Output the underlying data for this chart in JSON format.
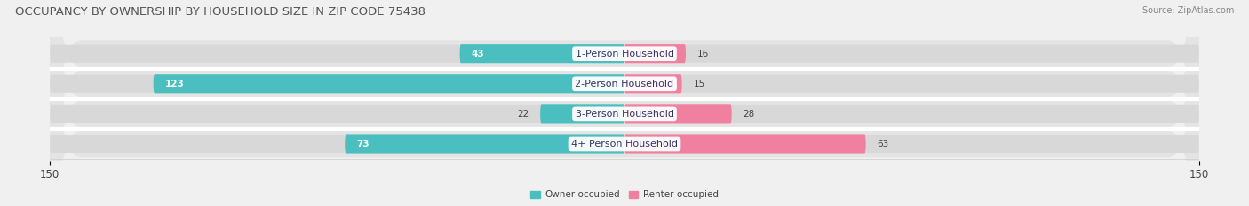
{
  "title": "OCCUPANCY BY OWNERSHIP BY HOUSEHOLD SIZE IN ZIP CODE 75438",
  "source": "Source: ZipAtlas.com",
  "categories": [
    "1-Person Household",
    "2-Person Household",
    "3-Person Household",
    "4+ Person Household"
  ],
  "owner_values": [
    43,
    123,
    22,
    73
  ],
  "renter_values": [
    16,
    15,
    28,
    63
  ],
  "owner_color": "#4BBFBF",
  "renter_color": "#F080A0",
  "axis_max": 150,
  "bar_height": 0.62,
  "background_color": "#f0f0f0",
  "row_bg_color": "#e4e4e4",
  "row_sep_color": "#ffffff",
  "label_color": "#444444",
  "cat_label_color": "#333366",
  "legend_owner": "Owner-occupied",
  "legend_renter": "Renter-occupied",
  "title_fontsize": 9.5,
  "source_fontsize": 7,
  "label_fontsize": 7.5,
  "cat_fontsize": 8,
  "tick_fontsize": 8.5
}
